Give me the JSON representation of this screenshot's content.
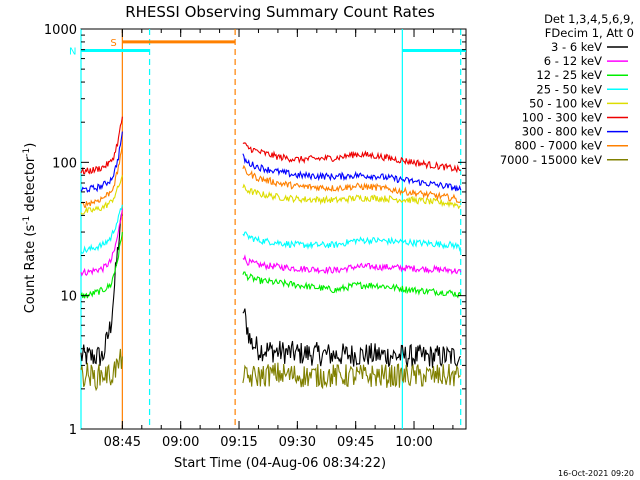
{
  "chart_data": {
    "type": "line",
    "title": "RHESSI Observing Summary Count Rates",
    "xlabel": "Start Time (04-Aug-06 08:34:22)",
    "ylabel_main": "Count Rate (s",
    "ylabel_sup1": "-1",
    "ylabel_mid": " detector",
    "ylabel_sup2": "-1",
    "ylabel_end": ")",
    "yscale": "log",
    "ylim": [
      1,
      1000
    ],
    "xlim": [
      "08:34:22",
      "10:13:22"
    ],
    "yticks": [
      {
        "value": 1,
        "label": "1"
      },
      {
        "value": 10,
        "label": "10"
      },
      {
        "value": 100,
        "label": "100"
      },
      {
        "value": 1000,
        "label": "1000"
      }
    ],
    "xticks": [
      {
        "value": "08:45",
        "label": "08:45"
      },
      {
        "value": "09:00",
        "label": "09:00"
      },
      {
        "value": "09:15",
        "label": "09:15"
      },
      {
        "value": "09:30",
        "label": "09:30"
      },
      {
        "value": "09:45",
        "label": "09:45"
      },
      {
        "value": "10:00",
        "label": "10:00"
      }
    ],
    "legend": {
      "placement": "right",
      "header": [
        "Det 1,3,4,5,6,9,",
        "FDecim 1, Att 0"
      ],
      "entries": [
        {
          "label": "3 - 6 keV",
          "color": "#000000"
        },
        {
          "label": "6 - 12 keV",
          "color": "#ff00ff"
        },
        {
          "label": "12 - 25 keV",
          "color": "#00ee00"
        },
        {
          "label": "25 - 50 keV",
          "color": "#00ffff"
        },
        {
          "label": "50 - 100 keV",
          "color": "#dddd00"
        },
        {
          "label": "100 - 300 keV",
          "color": "#ee0000"
        },
        {
          "label": "300 - 800 keV",
          "color": "#0000ff"
        },
        {
          "label": "800 - 7000 keV",
          "color": "#ff8000"
        },
        {
          "label": "7000 - 15000 keV",
          "color": "#808000"
        }
      ]
    },
    "series": [
      {
        "name": "3 - 6 keV",
        "color": "#000000",
        "segments": [
          {
            "x": [
              "08:34:22",
              "08:36",
              "08:38",
              "08:40",
              "08:42",
              "08:43",
              "08:44",
              "08:45"
            ],
            "y": [
              3.5,
              3.5,
              3.5,
              3.5,
              6,
              12,
              25,
              40
            ]
          },
          {
            "x": [
              "09:16",
              "09:17",
              "09:18",
              "09:20",
              "09:25",
              "09:30",
              "09:40",
              "09:50",
              "10:00",
              "10:10",
              "10:12"
            ],
            "y": [
              8,
              6,
              4.5,
              4,
              3.8,
              3.7,
              3.6,
              3.6,
              3.5,
              3.5,
              3.5
            ]
          }
        ]
      },
      {
        "name": "6 - 12 keV",
        "color": "#ff00ff",
        "segments": [
          {
            "x": [
              "08:34:22",
              "08:36",
              "08:38",
              "08:40",
              "08:42",
              "08:43",
              "08:44",
              "08:45"
            ],
            "y": [
              15,
              15,
              15.5,
              16,
              18,
              22,
              30,
              45
            ]
          },
          {
            "x": [
              "09:16",
              "09:17",
              "09:20",
              "09:25",
              "09:30",
              "09:40",
              "09:45",
              "09:50",
              "10:00",
              "10:10",
              "10:12"
            ],
            "y": [
              20,
              18,
              17,
              16.5,
              16,
              15.5,
              16.5,
              16.5,
              16,
              15.5,
              15
            ]
          }
        ]
      },
      {
        "name": "12 - 25 keV",
        "color": "#00ee00",
        "segments": [
          {
            "x": [
              "08:34:22",
              "08:36",
              "08:38",
              "08:40",
              "08:42",
              "08:43",
              "08:44",
              "08:45"
            ],
            "y": [
              10,
              10,
              10.5,
              11,
              12,
              15,
              20,
              30
            ]
          },
          {
            "x": [
              "09:16",
              "09:17",
              "09:20",
              "09:25",
              "09:30",
              "09:40",
              "09:45",
              "09:50",
              "10:00",
              "10:10",
              "10:12"
            ],
            "y": [
              15,
              14,
              13,
              12.5,
              12,
              11,
              12,
              12,
              11,
              10.5,
              10
            ]
          }
        ]
      },
      {
        "name": "25 - 50 keV",
        "color": "#00ffff",
        "segments": [
          {
            "x": [
              "08:34:22",
              "08:36",
              "08:38",
              "08:40",
              "08:42",
              "08:43",
              "08:44",
              "08:45"
            ],
            "y": [
              22,
              22,
              23,
              24,
              27,
              32,
              38,
              48
            ]
          },
          {
            "x": [
              "09:16",
              "09:17",
              "09:20",
              "09:25",
              "09:30",
              "09:40",
              "09:45",
              "09:50",
              "10:00",
              "10:10",
              "10:12"
            ],
            "y": [
              30,
              28,
              26,
              25,
              24,
              24,
              26,
              26,
              25,
              24,
              23
            ]
          }
        ]
      },
      {
        "name": "50 - 100 keV",
        "color": "#dddd00",
        "segments": [
          {
            "x": [
              "08:34:22",
              "08:36",
              "08:38",
              "08:40",
              "08:42",
              "08:43",
              "08:44",
              "08:45"
            ],
            "y": [
              42,
              43,
              44,
              46,
              50,
              56,
              65,
              80
            ]
          },
          {
            "x": [
              "09:16",
              "09:17",
              "09:20",
              "09:25",
              "09:30",
              "09:40",
              "09:45",
              "09:50",
              "10:00",
              "10:10",
              "10:12"
            ],
            "y": [
              65,
              62,
              58,
              55,
              53,
              52,
              54,
              54,
              52,
              49,
              47
            ]
          }
        ]
      },
      {
        "name": "100 - 300 keV",
        "color": "#ee0000",
        "segments": [
          {
            "x": [
              "08:34:22",
              "08:36",
              "08:38",
              "08:40",
              "08:42",
              "08:43",
              "08:44",
              "08:45"
            ],
            "y": [
              85,
              86,
              88,
              92,
              100,
              115,
              150,
              220
            ]
          },
          {
            "x": [
              "09:16",
              "09:17",
              "09:20",
              "09:25",
              "09:30",
              "09:40",
              "09:45",
              "09:50",
              "10:00",
              "10:10",
              "10:12"
            ],
            "y": [
              140,
              130,
              120,
              110,
              105,
              108,
              115,
              112,
              100,
              90,
              87
            ]
          }
        ]
      },
      {
        "name": "300 - 800 keV",
        "color": "#0000ff",
        "segments": [
          {
            "x": [
              "08:34:22",
              "08:36",
              "08:38",
              "08:40",
              "08:42",
              "08:43",
              "08:44",
              "08:45"
            ],
            "y": [
              62,
              63,
              64,
              67,
              74,
              85,
              110,
              170
            ]
          },
          {
            "x": [
              "09:16",
              "09:17",
              "09:20",
              "09:25",
              "09:30",
              "09:40",
              "09:45",
              "09:50",
              "10:00",
              "10:10",
              "10:12"
            ],
            "y": [
              110,
              100,
              92,
              85,
              80,
              78,
              80,
              79,
              72,
              65,
              62
            ]
          }
        ]
      },
      {
        "name": "800 - 7000 keV",
        "color": "#ff8000",
        "segments": [
          {
            "x": [
              "08:34:22",
              "08:36",
              "08:38",
              "08:40",
              "08:42",
              "08:43",
              "08:44",
              "08:45"
            ],
            "y": [
              48,
              49,
              51,
              54,
              60,
              70,
              90,
              140
            ]
          },
          {
            "x": [
              "09:16",
              "09:17",
              "09:20",
              "09:25",
              "09:30",
              "09:40",
              "09:45",
              "09:50",
              "10:00",
              "10:10",
              "10:12"
            ],
            "y": [
              90,
              84,
              76,
              70,
              66,
              64,
              66,
              65,
              59,
              54,
              51
            ]
          }
        ]
      },
      {
        "name": "7000 - 15000 keV",
        "color": "#808000",
        "segments": [
          {
            "x": [
              "08:34:22",
              "08:36",
              "08:38",
              "08:40",
              "08:42",
              "08:43",
              "08:44",
              "08:45"
            ],
            "y": [
              2.5,
              2.6,
              2.4,
              2.6,
              2.5,
              2.8,
              3,
              3.5
            ]
          },
          {
            "x": [
              "09:16",
              "09:17",
              "09:20",
              "09:25",
              "09:30",
              "09:40",
              "09:50",
              "10:00",
              "10:10",
              "10:12"
            ],
            "y": [
              2.5,
              2.4,
              2.5,
              2.6,
              2.5,
              2.5,
              2.5,
              2.5,
              2.5,
              2.5
            ]
          }
        ]
      }
    ],
    "spans": [
      {
        "label": "S",
        "color": "#ff8000",
        "x": [
          "08:45",
          "09:14"
        ],
        "y": 800
      },
      {
        "label": "N",
        "color": "#00ffff",
        "x": [
          "08:34:22",
          "08:52"
        ],
        "y": 690
      },
      {
        "label": "",
        "color": "#00ffff",
        "x": [
          "09:57",
          "10:13:22"
        ],
        "y": 690
      }
    ],
    "markers": [
      {
        "x": "08:34:22",
        "color": "#00ffff",
        "style": "solid"
      },
      {
        "x": "08:45",
        "color": "#ff8000",
        "style": "solid"
      },
      {
        "x": "08:52",
        "color": "#00ffff",
        "style": "dashed"
      },
      {
        "x": "09:14",
        "color": "#ff8000",
        "style": "dashed"
      },
      {
        "x": "09:57",
        "color": "#00ffff",
        "style": "solid"
      },
      {
        "x": "10:12",
        "color": "#00ffff",
        "style": "dashed"
      }
    ]
  },
  "footer": "16-Oct-2021 09:20"
}
